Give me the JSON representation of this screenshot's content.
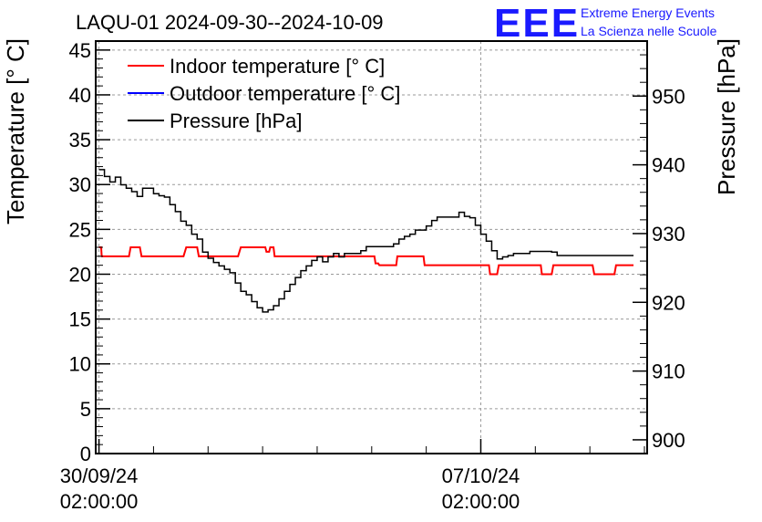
{
  "chart_data": {
    "type": "line",
    "title": "LAQU-01 2024-09-30--2024-10-09",
    "ylabel": "Temperature [° C]",
    "y2label": "Pressure [hPa]",
    "ylim": [
      0,
      46
    ],
    "y2lim": [
      898,
      958
    ],
    "xlim": [
      -0.06,
      10.05
    ],
    "yticks": [
      0,
      5,
      10,
      15,
      20,
      25,
      30,
      35,
      40,
      45
    ],
    "y2ticks": [
      900,
      910,
      920,
      930,
      940,
      950
    ],
    "xticks": [
      {
        "x": 0,
        "line1": "30/09/24",
        "line2": "02:00:00"
      },
      {
        "x": 7,
        "line1": "07/10/24",
        "line2": "02:00:00"
      }
    ],
    "grid": true,
    "legend_position": "top-left",
    "series": [
      {
        "name": "Indoor temperature [° C]",
        "color": "#ff0000",
        "axis": "left",
        "x": [
          0,
          0.04,
          0.05,
          0.55,
          0.58,
          0.75,
          0.78,
          1.55,
          1.6,
          1.8,
          1.83,
          2.55,
          2.6,
          3.05,
          3.07,
          3.12,
          3.14,
          3.2,
          3.22,
          5.05,
          5.07,
          5.12,
          5.14,
          5.45,
          5.47,
          5.95,
          5.97,
          7.15,
          7.17,
          7.3,
          7.33,
          8.1,
          8.12,
          8.3,
          8.33,
          9.05,
          9.08,
          9.45,
          9.48,
          9.55,
          9.57,
          9.8
        ],
        "y": [
          23,
          23,
          22,
          22,
          23,
          23,
          22,
          22,
          23,
          23,
          22,
          22,
          23,
          23,
          22.5,
          22.5,
          23,
          23,
          22,
          22,
          21.2,
          21.2,
          21,
          21,
          22,
          22,
          21,
          21,
          20,
          20,
          21,
          21,
          20,
          20,
          21,
          21,
          20,
          20,
          21,
          21,
          21,
          21
        ]
      },
      {
        "name": "Outdoor temperature [° C]",
        "color": "#0000ff",
        "axis": "left",
        "x": [
          0,
          9.8
        ],
        "y": [
          0,
          0
        ]
      },
      {
        "name": "Pressure [hPa]",
        "color": "#000000",
        "axis": "right",
        "x": [
          0,
          0.1,
          0.2,
          0.3,
          0.4,
          0.5,
          0.6,
          0.7,
          0.8,
          0.9,
          1.0,
          1.1,
          1.2,
          1.3,
          1.4,
          1.5,
          1.6,
          1.7,
          1.8,
          1.9,
          2.0,
          2.1,
          2.2,
          2.3,
          2.4,
          2.5,
          2.6,
          2.7,
          2.8,
          2.9,
          3.0,
          3.1,
          3.2,
          3.3,
          3.4,
          3.5,
          3.6,
          3.7,
          3.8,
          3.9,
          4.0,
          4.1,
          4.2,
          4.3,
          4.4,
          4.5,
          4.6,
          4.7,
          4.8,
          4.9,
          5.0,
          5.1,
          5.2,
          5.3,
          5.4,
          5.5,
          5.6,
          5.7,
          5.8,
          5.9,
          6.0,
          6.1,
          6.2,
          6.3,
          6.4,
          6.5,
          6.6,
          6.7,
          6.8,
          6.9,
          7.0,
          7.1,
          7.2,
          7.3,
          7.4,
          7.5,
          7.6,
          7.7,
          7.8,
          7.9,
          8.0,
          8.1,
          8.2,
          8.3,
          8.4,
          8.5,
          8.6,
          8.7,
          8.8,
          8.9,
          9.0,
          9.1,
          9.2,
          9.3,
          9.4,
          9.5,
          9.6,
          9.7,
          9.8
        ],
        "y": [
          939.3,
          938.3,
          937.5,
          938.2,
          937.1,
          936.6,
          936.1,
          935.4,
          936.6,
          936.6,
          935.8,
          935.5,
          935.3,
          934.2,
          933.2,
          931.8,
          931.2,
          929.9,
          929.2,
          927.3,
          926.4,
          925.8,
          925.3,
          924.8,
          924.3,
          922.8,
          921.6,
          921.1,
          920.1,
          919.2,
          918.6,
          918.9,
          919.5,
          920.5,
          921.6,
          922.6,
          923.6,
          924.6,
          925.3,
          926.1,
          926.6,
          925.9,
          926.6,
          927.1,
          926.6,
          927.1,
          927.1,
          927.1,
          927.5,
          928.1,
          928.1,
          928.1,
          928.1,
          928.1,
          928.5,
          929.2,
          929.6,
          929.9,
          930.5,
          930.5,
          931.1,
          931.9,
          932.4,
          932.4,
          932.4,
          932.4,
          933.1,
          932.5,
          932.3,
          931.2,
          929.9,
          928.9,
          927.5,
          926.3,
          926.6,
          926.8,
          927.1,
          927.1,
          927.1,
          927.4,
          927.4,
          927.4,
          927.4,
          927.3,
          926.8,
          926.8,
          926.8,
          926.8,
          926.8,
          926.8,
          926.8,
          926.8,
          926.8,
          926.8,
          926.8,
          926.8,
          926.8,
          926.8,
          926.8
        ]
      }
    ]
  },
  "logo": {
    "mark": "EEE",
    "line1": "Extreme Energy Events",
    "line2": "La Scienza nelle Scuole"
  }
}
